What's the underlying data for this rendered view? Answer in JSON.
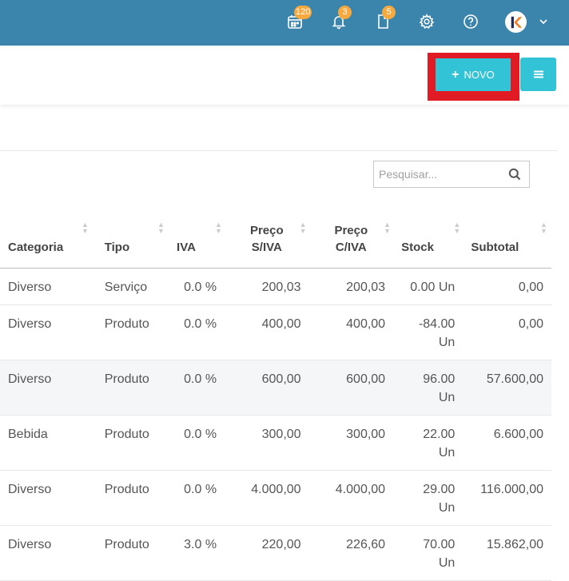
{
  "topbar": {
    "calendar_badge": "120",
    "bell_badge": "3",
    "docs_badge": "5"
  },
  "toolbar": {
    "novo_label": "NOVO"
  },
  "search": {
    "placeholder": "Pesquisar..."
  },
  "table": {
    "headers": {
      "categoria": "Categoria",
      "tipo": "Tipo",
      "iva": "IVA",
      "preco_siva_1": "Preço",
      "preco_siva_2": "S/IVA",
      "preco_civa_1": "Preço",
      "preco_civa_2": "C/IVA",
      "stock": "Stock",
      "subtotal": "Subtotal"
    },
    "rows": [
      {
        "categoria": "Diverso",
        "tipo": "Serviço",
        "iva": "0.0 %",
        "preco_siva": "200,03",
        "preco_civa": "200,03",
        "stock_1": "0.00 Un",
        "stock_2": "",
        "subtotal": "0,00"
      },
      {
        "categoria": "Diverso",
        "tipo": "Produto",
        "iva": "0.0 %",
        "preco_siva": "400,00",
        "preco_civa": "400,00",
        "stock_1": "-84.00",
        "stock_2": "Un",
        "subtotal": "0,00"
      },
      {
        "categoria": "Diverso",
        "tipo": "Produto",
        "iva": "0.0 %",
        "preco_siva": "600,00",
        "preco_civa": "600,00",
        "stock_1": "96.00",
        "stock_2": "Un",
        "subtotal": "57.600,00"
      },
      {
        "categoria": "Bebida",
        "tipo": "Produto",
        "iva": "0.0 %",
        "preco_siva": "300,00",
        "preco_civa": "300,00",
        "stock_1": "22.00",
        "stock_2": "Un",
        "subtotal": "6.600,00"
      },
      {
        "categoria": "Diverso",
        "tipo": "Produto",
        "iva": "0.0 %",
        "preco_siva": "4.000,00",
        "preco_civa": "4.000,00",
        "stock_1": "29.00",
        "stock_2": "Un",
        "subtotal": "116.000,00"
      },
      {
        "categoria": "Diverso",
        "tipo": "Produto",
        "iva": "3.0 %",
        "preco_siva": "220,00",
        "preco_civa": "226,60",
        "stock_1": "70.00",
        "stock_2": "Un",
        "subtotal": "15.862,00"
      }
    ]
  }
}
